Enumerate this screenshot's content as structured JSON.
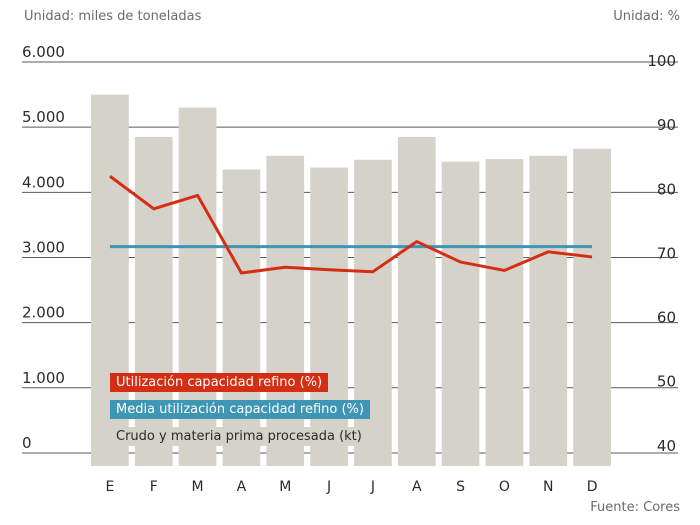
{
  "left_unit": "Unidad: miles de toneladas",
  "right_unit": "Unidad: %",
  "source": "Fuente: Cores",
  "colors": {
    "bar": "#d5d2ca",
    "line": "#d42e14",
    "mean": "#3f95b4",
    "grid": "#5a5a5a"
  },
  "chart_data": {
    "type": "bar",
    "categories": [
      "E",
      "F",
      "M",
      "A",
      "M",
      "J",
      "J",
      "A",
      "S",
      "O",
      "N",
      "D"
    ],
    "left_axis": {
      "ticks": [
        "0",
        "1.000",
        "2.000",
        "3.000",
        "4.000",
        "5.000",
        "6.000"
      ],
      "ylim": [
        -200,
        6000
      ]
    },
    "right_axis": {
      "ticks": [
        "40",
        "50",
        "60",
        "70",
        "80",
        "90",
        "100"
      ],
      "ylim": [
        37,
        100
      ]
    },
    "series": [
      {
        "name": "Crudo y materia prima procesada (kt)",
        "type": "bar",
        "axis": "left",
        "values": [
          5500,
          4850,
          5300,
          4350,
          4560,
          4380,
          4500,
          4850,
          4470,
          4510,
          4560,
          4670
        ]
      },
      {
        "name": "Utilización capacidad refino (%)",
        "type": "line",
        "axis": "right",
        "values": [
          82.2,
          77.1,
          79.2,
          67.1,
          68.0,
          67.6,
          67.3,
          72.0,
          68.8,
          67.5,
          70.4,
          69.6
        ]
      },
      {
        "name": "Media utilización capacidad refino (%)",
        "type": "line",
        "axis": "right",
        "values": [
          71.2,
          71.2,
          71.2,
          71.2,
          71.2,
          71.2,
          71.2,
          71.2,
          71.2,
          71.2,
          71.2,
          71.2
        ]
      }
    ],
    "legend": [
      {
        "label": "Utilización capacidad refino (%)",
        "style": "red"
      },
      {
        "label": "Media utilización capacidad refino (%)",
        "style": "blue"
      },
      {
        "label": "Crudo y materia prima procesada (kt)",
        "style": "gray"
      }
    ]
  }
}
